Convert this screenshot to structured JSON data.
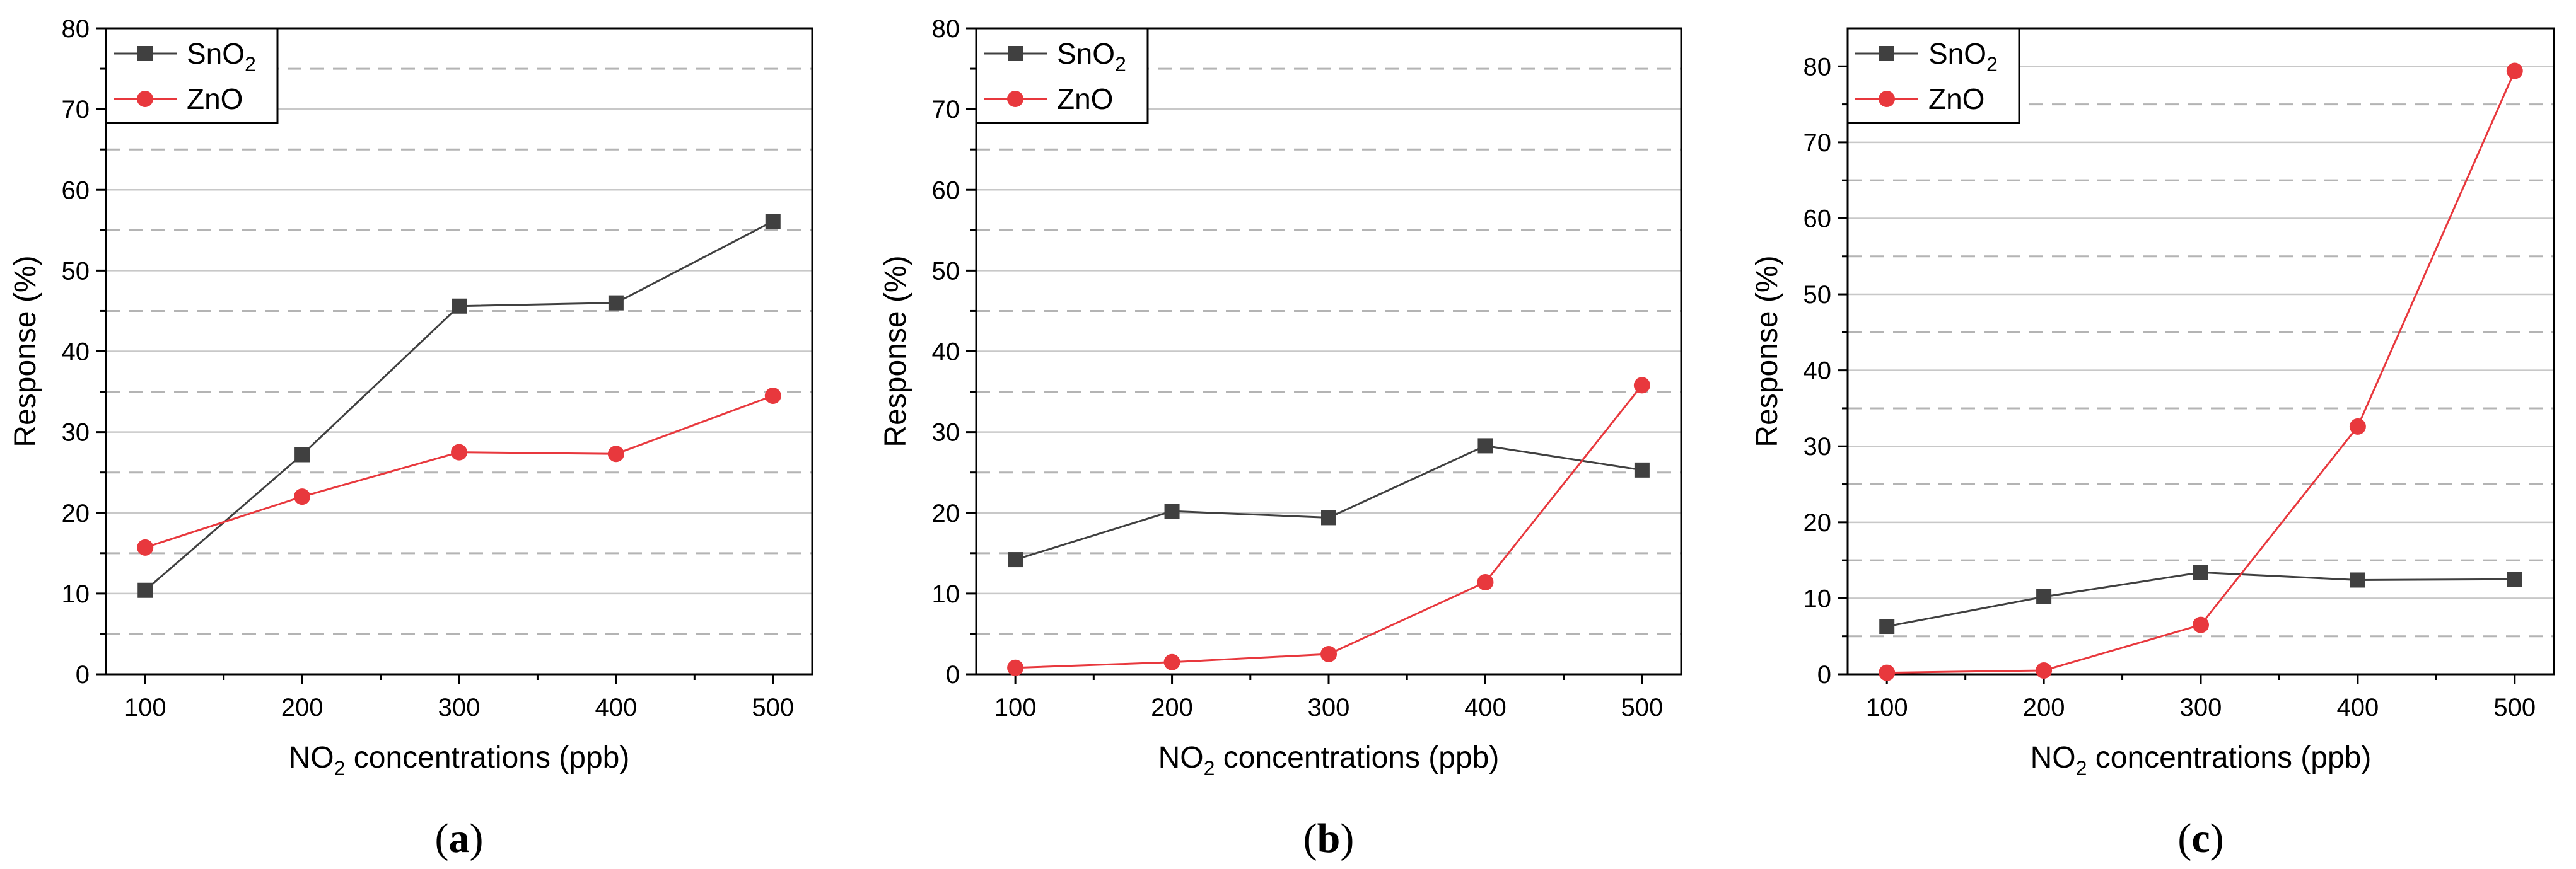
{
  "colors": {
    "sno2": "#404040",
    "zno": "#e8383d",
    "major_grid": "#c8c8c8",
    "minor_grid": "#b4b4b4",
    "axis": "#000000"
  },
  "chart_data": [
    {
      "type": "line",
      "panel_label": "a",
      "x": [
        100,
        200,
        300,
        400,
        500
      ],
      "xlabel": {
        "prefix": "NO",
        "sub": "2",
        "suffix": " concentrations (ppb)"
      },
      "ylabel": "Response (%)",
      "xlim": [
        75,
        525
      ],
      "ylim": [
        0,
        80
      ],
      "xticks": [
        100,
        200,
        300,
        400,
        500
      ],
      "yticks": [
        0,
        10,
        20,
        30,
        40,
        50,
        60,
        70,
        80
      ],
      "grid": true,
      "legend_position": "top-left",
      "series": [
        {
          "name": "SnO",
          "name_sub": "2",
          "marker": "square",
          "color_key": "sno2",
          "values": [
            10.4,
            27.2,
            45.6,
            46.0,
            56.1
          ]
        },
        {
          "name": "ZnO",
          "name_sub": "",
          "marker": "circle",
          "color_key": "zno",
          "values": [
            15.7,
            22.0,
            27.5,
            27.3,
            34.5
          ]
        }
      ]
    },
    {
      "type": "line",
      "panel_label": "b",
      "x": [
        100,
        200,
        300,
        400,
        500
      ],
      "xlabel": {
        "prefix": "NO",
        "sub": "2",
        "suffix": " concentrations (ppb)"
      },
      "ylabel": "Response (%)",
      "xlim": [
        75,
        525
      ],
      "ylim": [
        0,
        80
      ],
      "xticks": [
        100,
        200,
        300,
        400,
        500
      ],
      "yticks": [
        0,
        10,
        20,
        30,
        40,
        50,
        60,
        70,
        80
      ],
      "grid": true,
      "legend_position": "top-left",
      "series": [
        {
          "name": "SnO",
          "name_sub": "2",
          "marker": "square",
          "color_key": "sno2",
          "values": [
            14.2,
            20.2,
            19.4,
            28.3,
            25.3
          ]
        },
        {
          "name": "ZnO",
          "name_sub": "",
          "marker": "circle",
          "color_key": "zno",
          "values": [
            0.8,
            1.5,
            2.5,
            11.4,
            35.8
          ]
        }
      ]
    },
    {
      "type": "line",
      "panel_label": "c",
      "x": [
        100,
        200,
        300,
        400,
        500
      ],
      "xlabel": {
        "prefix": "NO",
        "sub": "2",
        "suffix": " concentrations (ppb)"
      },
      "ylabel": "Response (%)",
      "xlim": [
        75,
        525
      ],
      "ylim": [
        0,
        85
      ],
      "xticks": [
        100,
        200,
        300,
        400,
        500
      ],
      "yticks": [
        0,
        10,
        20,
        30,
        40,
        50,
        60,
        70,
        80
      ],
      "grid": true,
      "legend_position": "top-left",
      "series": [
        {
          "name": "SnO",
          "name_sub": "2",
          "marker": "square",
          "color_key": "sno2",
          "values": [
            6.3,
            10.2,
            13.4,
            12.4,
            12.5
          ]
        },
        {
          "name": "ZnO",
          "name_sub": "",
          "marker": "circle",
          "color_key": "zno",
          "values": [
            0.2,
            0.5,
            6.5,
            32.6,
            79.4
          ]
        }
      ]
    }
  ]
}
